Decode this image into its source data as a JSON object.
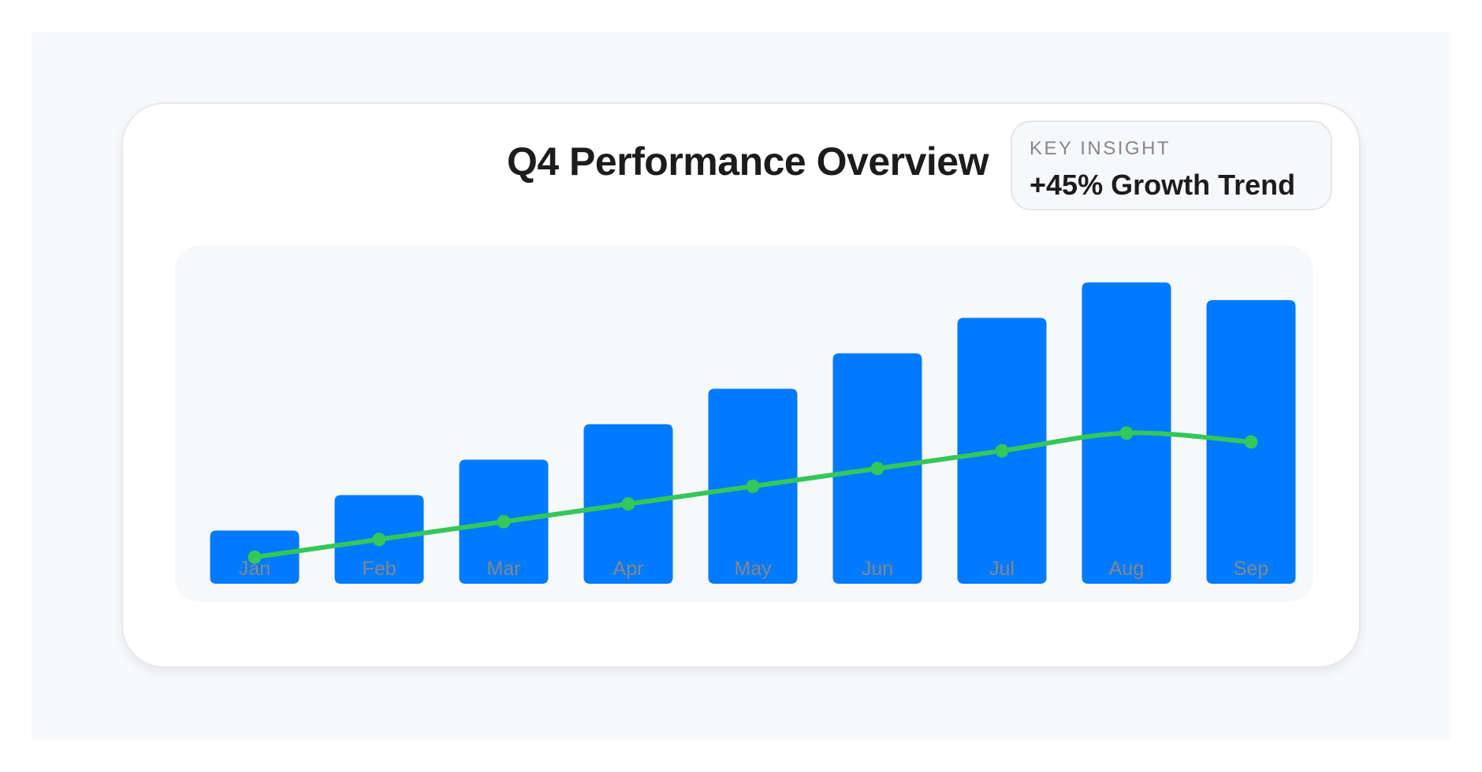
{
  "card": {
    "title": "Q4 Performance Overview",
    "insight": {
      "label": "KEY INSIGHT",
      "value": "+45% Growth Trend"
    }
  },
  "chart_data": {
    "type": "bar",
    "categories": [
      "Jan",
      "Feb",
      "Mar",
      "Apr",
      "May",
      "Jun",
      "Jul",
      "Aug",
      "Sep"
    ],
    "series": [
      {
        "type": "bar",
        "values": [
          15,
          25,
          35,
          45,
          55,
          65,
          75,
          85,
          80
        ],
        "color": "#007aff"
      },
      {
        "type": "line",
        "values": [
          7.5,
          12.5,
          17.5,
          22.5,
          27.5,
          32.5,
          37.5,
          42.5,
          40
        ],
        "color": "#34c759"
      }
    ],
    "title": "Q4 Performance Overview",
    "xlabel": "",
    "ylabel": "",
    "ylim": [
      0,
      100
    ],
    "grid": false,
    "legend": "none",
    "tick_color": "#86868b"
  }
}
